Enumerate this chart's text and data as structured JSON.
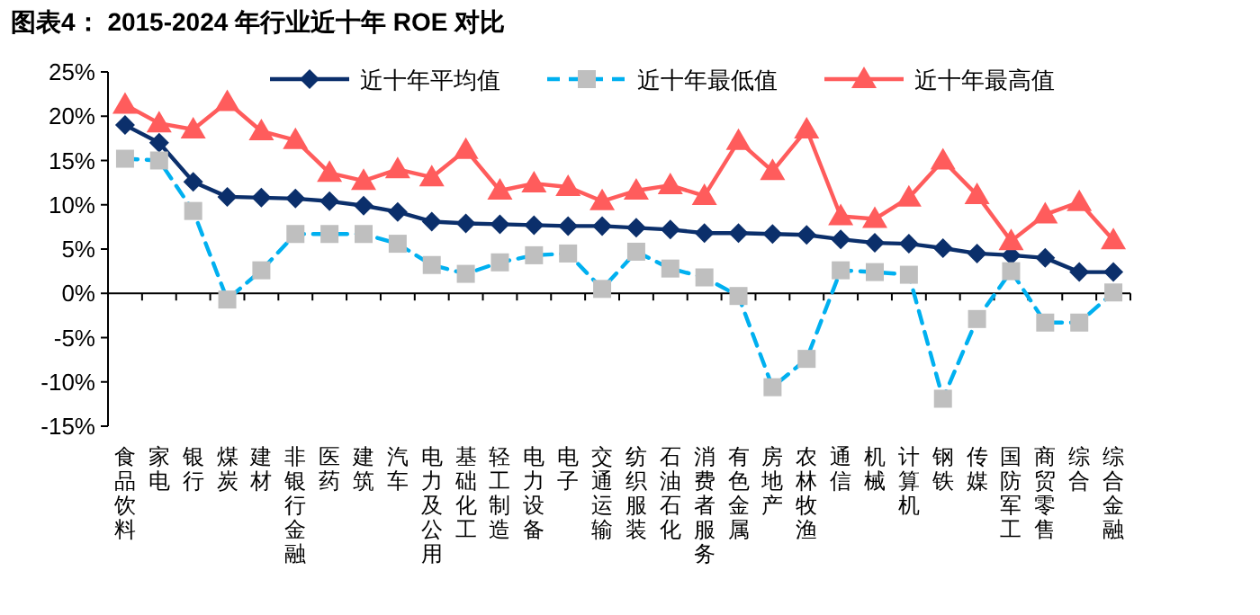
{
  "chart_data": {
    "type": "line",
    "title": "**图表4：**  **2015-2024 年行业近十年 ROE 对比**",
    "categories": [
      "食品饮料",
      "家电",
      "银行",
      "煤炭",
      "建材",
      "非银行金融",
      "医药",
      "建筑",
      "汽车",
      "电力及公用",
      "基础化工",
      "轻工制造",
      "电力设备",
      "电子",
      "交通运输",
      "纺织服装",
      "石油石化",
      "消费者服务",
      "有色金属",
      "房地产",
      "农林牧渔",
      "通信",
      "机械",
      "计算机",
      "钢铁",
      "传媒",
      "国防军工",
      "商贸零售",
      "综合",
      "综合金融"
    ],
    "series": [
      {
        "name": "近十年平均值",
        "color": "#0b2f6b",
        "marker": "diamond",
        "line_style": "solid",
        "values": [
          19.0,
          17.0,
          12.6,
          10.9,
          10.8,
          10.7,
          10.4,
          9.9,
          9.2,
          8.1,
          7.9,
          7.8,
          7.7,
          7.6,
          7.6,
          7.4,
          7.2,
          6.8,
          6.8,
          6.7,
          6.6,
          6.1,
          5.7,
          5.6,
          5.1,
          4.5,
          4.3,
          4.0,
          2.4,
          2.4
        ]
      },
      {
        "name": "近十年最低值",
        "color": "#00b0f0",
        "marker": "square",
        "line_style": "dashed",
        "values": [
          15.2,
          15.0,
          9.3,
          -0.7,
          2.6,
          6.7,
          6.7,
          6.7,
          5.6,
          3.2,
          2.2,
          3.5,
          4.3,
          4.5,
          0.5,
          4.7,
          2.8,
          1.8,
          -0.3,
          -10.6,
          -7.4,
          2.6,
          2.4,
          2.1,
          -11.9,
          -2.9,
          2.5,
          -3.3,
          -3.3,
          0.1
        ]
      },
      {
        "name": "近十年最高值",
        "color": "#ff5c5c",
        "marker": "triangle",
        "line_style": "solid",
        "values": [
          21.3,
          19.2,
          18.5,
          21.6,
          18.3,
          17.3,
          13.6,
          12.7,
          14.0,
          13.1,
          16.2,
          11.6,
          12.4,
          12.0,
          10.4,
          11.6,
          12.2,
          11.0,
          17.2,
          13.8,
          18.5,
          8.7,
          8.4,
          10.8,
          15.0,
          11.1,
          5.9,
          8.9,
          10.3,
          6.0
        ]
      }
    ],
    "ylim": [
      -15,
      25
    ],
    "yticks": [
      {
        "value": 25,
        "label": "25%"
      },
      {
        "value": 20,
        "label": "20%"
      },
      {
        "value": 15,
        "label": "15%"
      },
      {
        "value": 10,
        "label": "10%"
      },
      {
        "value": 5,
        "label": "5%"
      },
      {
        "value": 0,
        "label": "0%"
      },
      {
        "value": -5,
        "label": "-5%"
      },
      {
        "value": -10,
        "label": "-10%"
      },
      {
        "value": -15,
        "label": "-15%"
      }
    ],
    "legend": "top"
  }
}
